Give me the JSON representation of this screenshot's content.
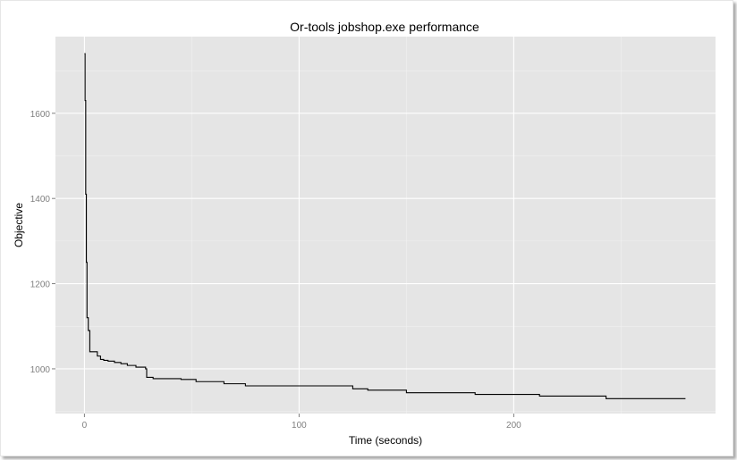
{
  "chart_data": {
    "type": "line",
    "title": "Or-tools jobshop.exe performance",
    "xlabel": "Time (seconds)",
    "ylabel": "Objective",
    "xlim": [
      -13.5,
      294
    ],
    "ylim": [
      895,
      1780
    ],
    "x_ticks": [
      0,
      100,
      200
    ],
    "x_tick_labels": [
      "0",
      "100",
      "200"
    ],
    "y_ticks": [
      1000,
      1200,
      1400,
      1600
    ],
    "y_tick_labels": [
      "1000",
      "1200",
      "1400",
      "1600"
    ],
    "grid": true,
    "legend": "none",
    "colors": {
      "panel": "#e5e5e5",
      "grid_major": "#ffffff",
      "grid_minor": "#f2f2f2",
      "line": "#000000"
    },
    "series": [
      {
        "step": true,
        "x": [
          0.0,
          0.3,
          0.6,
          0.9,
          1.2,
          1.8,
          2.5,
          3.5,
          4.5,
          6.0,
          7.5,
          9.0,
          11.0,
          14.0,
          17.0,
          20.0,
          24.0,
          28.5,
          29.0,
          32.0,
          45.0,
          52.0,
          65.0,
          75.0,
          100.0,
          125.0,
          132.0,
          150.0,
          182.0,
          212.0,
          243.0,
          280.0
        ],
        "y": [
          1740,
          1630,
          1410,
          1250,
          1120,
          1090,
          1040,
          1040,
          1040,
          1030,
          1022,
          1020,
          1018,
          1015,
          1012,
          1008,
          1004,
          1000,
          980,
          977,
          975,
          970,
          965,
          960,
          960,
          953,
          950,
          944,
          940,
          936,
          930,
          930
        ]
      }
    ]
  }
}
